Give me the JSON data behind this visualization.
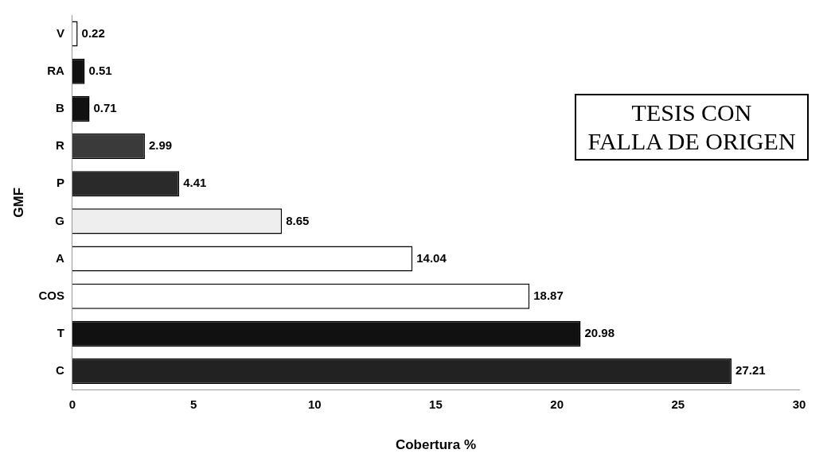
{
  "chart_data": {
    "type": "bar",
    "orientation": "horizontal",
    "categories": [
      "V",
      "RA",
      "B",
      "R",
      "P",
      "G",
      "A",
      "COS",
      "T",
      "C"
    ],
    "values": [
      0.22,
      0.51,
      0.71,
      2.99,
      4.41,
      8.65,
      14.04,
      18.87,
      20.98,
      27.21
    ],
    "colors": [
      "#ffffff",
      "#111111",
      "#111111",
      "#3a3a3a",
      "#2a2a2a",
      "#eeeeee",
      "#ffffff",
      "#ffffff",
      "#111111",
      "#222222"
    ],
    "xlim": [
      0,
      30
    ],
    "xticks": [
      0,
      5,
      10,
      15,
      20,
      25,
      30
    ],
    "xlabel": "Cobertura %",
    "ylabel": "GMF",
    "data_labels": true,
    "grid": false,
    "legend": false,
    "annotations": [
      "TESIS CON\nFALLA DE ORIGEN"
    ]
  }
}
